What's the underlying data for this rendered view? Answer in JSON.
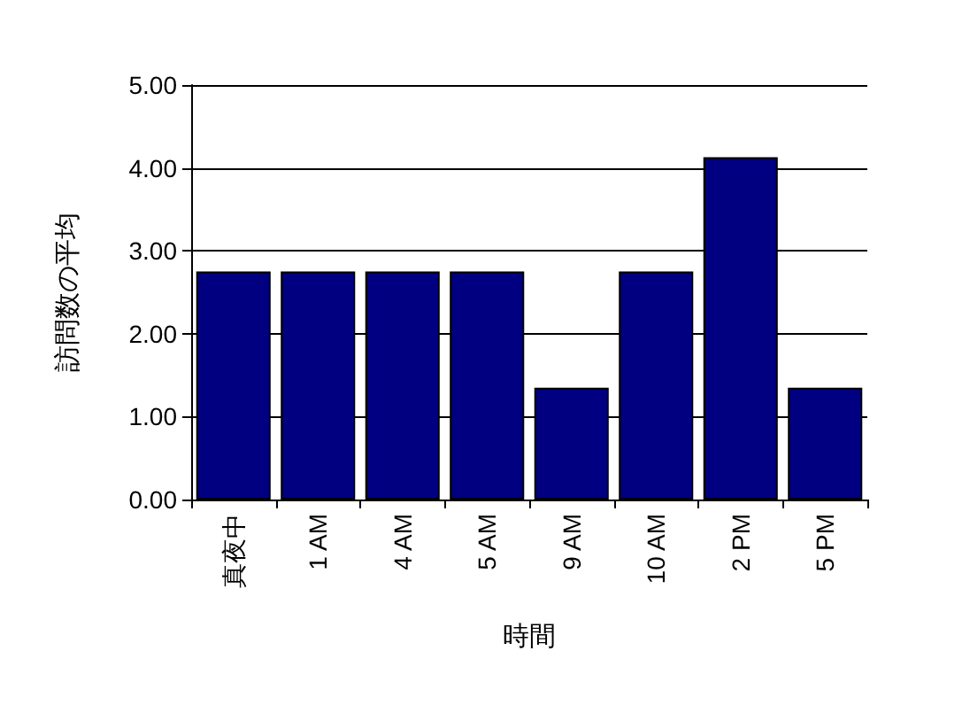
{
  "chart_data": {
    "type": "bar",
    "xlabel": "時間",
    "ylabel": "訪問数の平均",
    "categories": [
      "真夜中",
      "1 AM",
      "4 AM",
      "5 AM",
      "9 AM",
      "10 AM",
      "2 PM",
      "5 PM"
    ],
    "values": [
      2.75,
      2.75,
      2.75,
      2.75,
      1.35,
      2.75,
      4.13,
      1.35
    ],
    "color": "#000080",
    "ylim": [
      0,
      5
    ],
    "yticks": [
      {
        "value": 0,
        "label": "0.00"
      },
      {
        "value": 1,
        "label": "1.00"
      },
      {
        "value": 2,
        "label": "2.00"
      },
      {
        "value": 3,
        "label": "3.00"
      },
      {
        "value": 4,
        "label": "4.00"
      },
      {
        "value": 5,
        "label": "5.00"
      }
    ],
    "grid": "y"
  }
}
